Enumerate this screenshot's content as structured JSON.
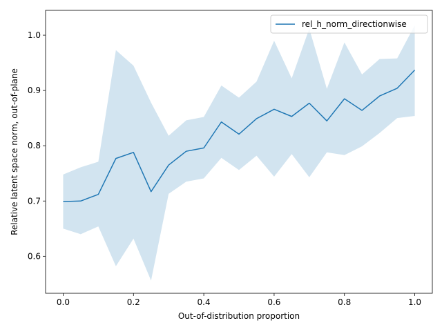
{
  "chart_data": {
    "type": "line",
    "title": "",
    "xlabel": "Out-of-distribution proportion",
    "ylabel": "Relative latent space norm, out-of-plane",
    "xlim": [
      -0.05,
      1.05
    ],
    "ylim": [
      0.533,
      1.045
    ],
    "x_ticks": [
      0.0,
      0.2,
      0.4,
      0.6,
      0.8,
      1.0
    ],
    "x_tick_labels": [
      "0.0",
      "0.2",
      "0.4",
      "0.6",
      "0.8",
      "1.0"
    ],
    "y_ticks": [
      0.6,
      0.7,
      0.8,
      0.9,
      1.0
    ],
    "y_tick_labels": [
      "0.6",
      "0.7",
      "0.8",
      "0.9",
      "1.0"
    ],
    "grid": false,
    "legend_position": "top-right",
    "series": [
      {
        "name": "rel_h_norm_directionwise",
        "color": "#1f77b4",
        "band_color": "#1f77b4",
        "band_opacity": 0.2,
        "x": [
          0.0,
          0.05,
          0.1,
          0.15,
          0.2,
          0.25,
          0.3,
          0.35,
          0.4,
          0.45,
          0.5,
          0.55,
          0.6,
          0.65,
          0.7,
          0.75,
          0.8,
          0.85,
          0.9,
          0.95,
          1.0
        ],
        "y": [
          0.699,
          0.7,
          0.712,
          0.777,
          0.788,
          0.717,
          0.765,
          0.79,
          0.796,
          0.843,
          0.821,
          0.849,
          0.866,
          0.853,
          0.877,
          0.845,
          0.885,
          0.864,
          0.89,
          0.904,
          0.937
        ],
        "y_lower": [
          0.65,
          0.64,
          0.654,
          0.582,
          0.632,
          0.556,
          0.713,
          0.735,
          0.741,
          0.778,
          0.756,
          0.782,
          0.744,
          0.785,
          0.743,
          0.788,
          0.783,
          0.799,
          0.823,
          0.85,
          0.854
        ],
        "y_upper": [
          0.748,
          0.761,
          0.771,
          0.973,
          0.945,
          0.878,
          0.818,
          0.846,
          0.852,
          0.909,
          0.887,
          0.916,
          0.99,
          0.922,
          1.012,
          0.903,
          0.987,
          0.929,
          0.957,
          0.958,
          1.018
        ]
      }
    ]
  }
}
